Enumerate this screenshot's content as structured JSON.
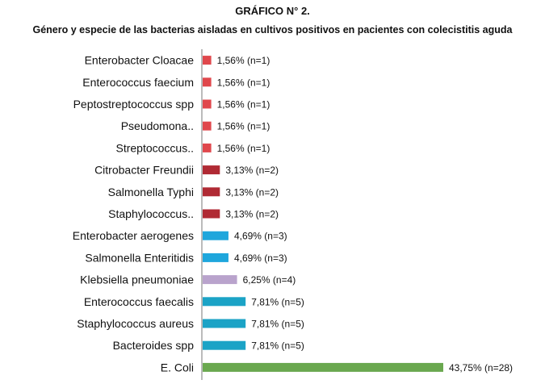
{
  "header": {
    "title": "GRÁFICO N° 2.",
    "subtitle": "Género y especie de las bacterias aisladas en cultivos positivos en pacientes con colecistitis aguda"
  },
  "chart_data": {
    "type": "bar",
    "orientation": "horizontal",
    "xlim": [
      0,
      43.75
    ],
    "grid": false,
    "categories": [
      "Enterobacter Cloacae",
      "Enterococcus faecium",
      "Peptostreptococcus spp",
      "Pseudomona..",
      "Streptococcus..",
      "Citrobacter Freundii",
      "Salmonella Typhi",
      "Staphylococcus..",
      "Enterobacter aerogenes",
      "Salmonella Enteritidis",
      "Klebsiella pneumoniae",
      "Enterococcus faecalis",
      "Staphylococcus aureus",
      "Bacteroides spp",
      "E. Coli"
    ],
    "values": [
      1.56,
      1.56,
      1.56,
      1.56,
      1.56,
      3.13,
      3.13,
      3.13,
      4.69,
      4.69,
      6.25,
      7.81,
      7.81,
      7.81,
      43.75
    ],
    "data_labels": [
      "1,56% (n=1)",
      "1,56% (n=1)",
      "1,56% (n=1)",
      "1,56% (n=1)",
      "1,56% (n=1)",
      "3,13% (n=2)",
      "3,13% (n=2)",
      "3,13% (n=2)",
      "4,69% (n=3)",
      "4,69% (n=3)",
      "6,25% (n=4)",
      "7,81% (n=5)",
      "7,81% (n=5)",
      "7,81% (n=5)",
      "43,75% (n=28)"
    ],
    "colors": [
      "#e0474c",
      "#e0474c",
      "#e0474c",
      "#e0474c",
      "#e0474c",
      "#b02a34",
      "#b02a34",
      "#b02a34",
      "#1ea6dc",
      "#1ea6dc",
      "#b9a3cc",
      "#1ba3c6",
      "#1ba3c6",
      "#1ba3c6",
      "#6aa84f"
    ]
  }
}
